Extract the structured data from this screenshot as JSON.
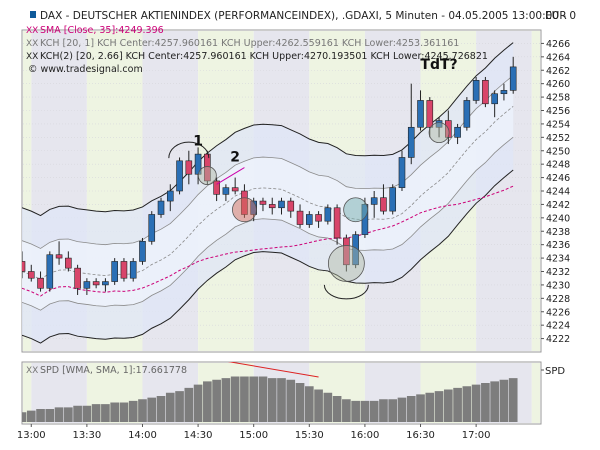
{
  "chart_data": {
    "type": "candlestick",
    "symbol_header": "DAX - DEUTSCHER AKTIENINDEX (PERFORMANCEINDEX), .GDAXI, 5 Minuten - 04.05.2005 13:00:00 - 0",
    "currency": "EUR",
    "indicator_lines": [
      {
        "text": "SMA [Close, 35]:4249.396",
        "color": "#cc0077"
      },
      {
        "text": "KCH [20, 1] KCH Center:4257.960161 KCH Upper:4262.559161 KCH Lower:4253.361161",
        "color": "#777777"
      },
      {
        "text": "KCH(2) [20, 2.66] KCH Center:4257.960161 KCH Upper:4270.193501 KCH Lower:4245.726821",
        "color": "#222222"
      }
    ],
    "copyright": "© www.tradesignal.com",
    "ylim": [
      4220,
      4268
    ],
    "y_ticks": [
      4222,
      4224,
      4226,
      4228,
      4230,
      4232,
      4234,
      4236,
      4238,
      4240,
      4242,
      4244,
      4246,
      4248,
      4250,
      4252,
      4254,
      4256,
      4258,
      4260,
      4262,
      4264,
      4266
    ],
    "x_tick_labels": [
      "13:00",
      "13:30",
      "14:00",
      "14:30",
      "15:00",
      "15:30",
      "16:00",
      "16:30",
      "17:00"
    ],
    "time_start_minutes": 775,
    "time_end_minutes": 1055,
    "candles": [
      {
        "t": "12:55",
        "o": 4233.5,
        "h": 4235,
        "l": 4231,
        "c": 4232
      },
      {
        "t": "13:00",
        "o": 4232,
        "h": 4233,
        "l": 4230.5,
        "c": 4231
      },
      {
        "t": "13:05",
        "o": 4231,
        "h": 4232,
        "l": 4229,
        "c": 4229.5
      },
      {
        "t": "13:10",
        "o": 4229.5,
        "h": 4235,
        "l": 4229,
        "c": 4234.5
      },
      {
        "t": "13:15",
        "o": 4234.5,
        "h": 4236.5,
        "l": 4233,
        "c": 4234
      },
      {
        "t": "13:20",
        "o": 4234,
        "h": 4235,
        "l": 4232,
        "c": 4232.5
      },
      {
        "t": "13:25",
        "o": 4232.5,
        "h": 4233,
        "l": 4228.5,
        "c": 4229.5
      },
      {
        "t": "13:30",
        "o": 4229.5,
        "h": 4231,
        "l": 4228.5,
        "c": 4230.5
      },
      {
        "t": "13:35",
        "o": 4230.5,
        "h": 4231,
        "l": 4229.5,
        "c": 4230
      },
      {
        "t": "13:40",
        "o": 4230,
        "h": 4231,
        "l": 4229,
        "c": 4230.5
      },
      {
        "t": "13:45",
        "o": 4230.5,
        "h": 4234,
        "l": 4230,
        "c": 4233.5
      },
      {
        "t": "13:50",
        "o": 4233.5,
        "h": 4234,
        "l": 4230.5,
        "c": 4231
      },
      {
        "t": "13:55",
        "o": 4231,
        "h": 4234,
        "l": 4230.5,
        "c": 4233.5
      },
      {
        "t": "14:00",
        "o": 4233.5,
        "h": 4237,
        "l": 4233,
        "c": 4236.5
      },
      {
        "t": "14:05",
        "o": 4236.5,
        "h": 4241,
        "l": 4236,
        "c": 4240.5
      },
      {
        "t": "14:10",
        "o": 4240.5,
        "h": 4243,
        "l": 4240,
        "c": 4242.5
      },
      {
        "t": "14:15",
        "o": 4242.5,
        "h": 4245,
        "l": 4241,
        "c": 4244
      },
      {
        "t": "14:20",
        "o": 4244,
        "h": 4249,
        "l": 4243.5,
        "c": 4248.5
      },
      {
        "t": "14:25",
        "o": 4248.5,
        "h": 4250,
        "l": 4245,
        "c": 4246.5
      },
      {
        "t": "14:30",
        "o": 4246.5,
        "h": 4250.5,
        "l": 4245,
        "c": 4249.5
      },
      {
        "t": "14:35",
        "o": 4249.5,
        "h": 4250,
        "l": 4245,
        "c": 4245.5
      },
      {
        "t": "14:40",
        "o": 4245.5,
        "h": 4246,
        "l": 4242.5,
        "c": 4243.5
      },
      {
        "t": "14:45",
        "o": 4243.5,
        "h": 4245,
        "l": 4242.5,
        "c": 4244.5
      },
      {
        "t": "14:50",
        "o": 4244.5,
        "h": 4246,
        "l": 4243.5,
        "c": 4244
      },
      {
        "t": "14:55",
        "o": 4244,
        "h": 4245,
        "l": 4240,
        "c": 4240.5
      },
      {
        "t": "15:00",
        "o": 4240.5,
        "h": 4243,
        "l": 4239.5,
        "c": 4242.5
      },
      {
        "t": "15:05",
        "o": 4242.5,
        "h": 4243,
        "l": 4241,
        "c": 4242
      },
      {
        "t": "15:10",
        "o": 4242,
        "h": 4243,
        "l": 4240.5,
        "c": 4241.5
      },
      {
        "t": "15:15",
        "o": 4241.5,
        "h": 4243,
        "l": 4240.5,
        "c": 4242.5
      },
      {
        "t": "15:20",
        "o": 4242.5,
        "h": 4243,
        "l": 4240,
        "c": 4241
      },
      {
        "t": "15:25",
        "o": 4241,
        "h": 4242,
        "l": 4238.5,
        "c": 4239
      },
      {
        "t": "15:30",
        "o": 4239,
        "h": 4241,
        "l": 4238.5,
        "c": 4240.5
      },
      {
        "t": "15:35",
        "o": 4240.5,
        "h": 4241,
        "l": 4238.5,
        "c": 4239.5
      },
      {
        "t": "15:40",
        "o": 4239.5,
        "h": 4242,
        "l": 4239,
        "c": 4241.5
      },
      {
        "t": "15:45",
        "o": 4241.5,
        "h": 4242,
        "l": 4236,
        "c": 4237
      },
      {
        "t": "15:50",
        "o": 4237,
        "h": 4237.5,
        "l": 4232,
        "c": 4233
      },
      {
        "t": "15:55",
        "o": 4233,
        "h": 4238,
        "l": 4232.5,
        "c": 4237.5
      },
      {
        "t": "16:00",
        "o": 4237.5,
        "h": 4243,
        "l": 4237,
        "c": 4242
      },
      {
        "t": "16:05",
        "o": 4242,
        "h": 4244,
        "l": 4240,
        "c": 4243
      },
      {
        "t": "16:10",
        "o": 4243,
        "h": 4245,
        "l": 4240.5,
        "c": 4241
      },
      {
        "t": "16:15",
        "o": 4241,
        "h": 4245,
        "l": 4240.5,
        "c": 4244.5
      },
      {
        "t": "16:20",
        "o": 4244.5,
        "h": 4250,
        "l": 4244,
        "c": 4249
      },
      {
        "t": "16:25",
        "o": 4249,
        "h": 4260,
        "l": 4248,
        "c": 4253.5
      },
      {
        "t": "16:30",
        "o": 4253.5,
        "h": 4259,
        "l": 4253,
        "c": 4257.5
      },
      {
        "t": "16:35",
        "o": 4257.5,
        "h": 4258,
        "l": 4252,
        "c": 4253.5
      },
      {
        "t": "16:40",
        "o": 4253.5,
        "h": 4255,
        "l": 4252,
        "c": 4254.5
      },
      {
        "t": "16:45",
        "o": 4254.5,
        "h": 4256,
        "l": 4251,
        "c": 4252
      },
      {
        "t": "16:50",
        "o": 4252,
        "h": 4254,
        "l": 4251,
        "c": 4253.5
      },
      {
        "t": "16:55",
        "o": 4253.5,
        "h": 4258,
        "l": 4253,
        "c": 4257.5
      },
      {
        "t": "17:00",
        "o": 4257.5,
        "h": 4261,
        "l": 4257,
        "c": 4260.5
      },
      {
        "t": "17:05",
        "o": 4260.5,
        "h": 4261,
        "l": 4256.5,
        "c": 4257
      },
      {
        "t": "17:10",
        "o": 4257,
        "h": 4259,
        "l": 4255,
        "c": 4258.5
      },
      {
        "t": "17:15",
        "o": 4258.5,
        "h": 4260,
        "l": 4257.5,
        "c": 4259
      },
      {
        "t": "17:20",
        "o": 4259,
        "h": 4264,
        "l": 4258.5,
        "c": 4262.5
      }
    ],
    "annotations": [
      {
        "text": "1",
        "t": "14:30",
        "y": 4250.8
      },
      {
        "text": "2",
        "t": "14:50",
        "y": 4248.4
      },
      {
        "text": "TdT?",
        "t": "16:40",
        "y": 4262.2
      }
    ],
    "sub_panel": {
      "label": "SPD [WMA, SMA, 1]:17.661778",
      "right_label": "SPD",
      "values": [
        6,
        7,
        8,
        8,
        9,
        9,
        10,
        10,
        11,
        11,
        12,
        12,
        13,
        14,
        15,
        16,
        18,
        19,
        21,
        23,
        25,
        26,
        27,
        28,
        28,
        28,
        28,
        27,
        27,
        26,
        24,
        22,
        20,
        18,
        16,
        14,
        13,
        13,
        13,
        14,
        14,
        15,
        16,
        17,
        18,
        19,
        20,
        21,
        22,
        23,
        24,
        25,
        26,
        27
      ]
    }
  }
}
